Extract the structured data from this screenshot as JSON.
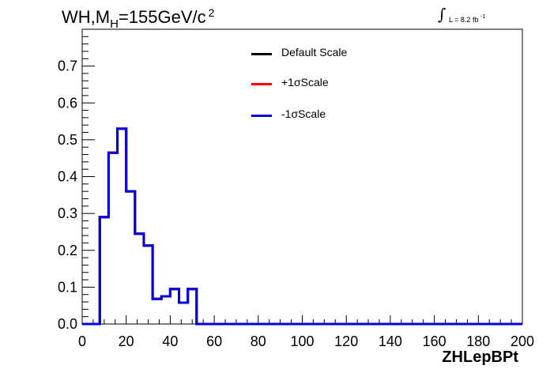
{
  "chart_data": {
    "type": "line",
    "title": {
      "main": "WH,M",
      "sub": "H",
      "rest": "=155GeV/c",
      "sup": "2"
    },
    "luminosity": {
      "integral": "∫",
      "text": "L = 8.2 fb",
      "sup": "-1"
    },
    "xlabel": "ZHLepBPt",
    "ylabel": "",
    "xlim": [
      0,
      200
    ],
    "ylim": [
      0,
      0.8
    ],
    "x_ticks": [
      0,
      20,
      40,
      60,
      80,
      100,
      120,
      140,
      160,
      180,
      200
    ],
    "y_ticks": [
      0.0,
      0.1,
      0.2,
      0.3,
      0.4,
      0.5,
      0.6,
      0.7
    ],
    "y_tick_labels": [
      "0.0",
      "0.1",
      "0.2",
      "0.3",
      "0.4",
      "0.5",
      "0.6",
      "0.7"
    ],
    "bin_edges": [
      0,
      4,
      8,
      12,
      16,
      20,
      24,
      28,
      32,
      36,
      40,
      44,
      48,
      52,
      56,
      60,
      64,
      68,
      72,
      76,
      80,
      84,
      88,
      92,
      96,
      100,
      104,
      108,
      112,
      116,
      120,
      124,
      128,
      132,
      136,
      140,
      144,
      148,
      152,
      156,
      160,
      164,
      168,
      172,
      176,
      180,
      184,
      188,
      192,
      196,
      200
    ],
    "series": [
      {
        "name": "Default Scale",
        "color": "#000000",
        "values": [
          0,
          0,
          0.29,
          0.465,
          0.53,
          0.36,
          0.245,
          0.213,
          0.068,
          0.075,
          0.095,
          0.058,
          0.095,
          0,
          0,
          0,
          0,
          0,
          0,
          0,
          0,
          0,
          0,
          0,
          0,
          0,
          0,
          0,
          0,
          0,
          0,
          0,
          0,
          0,
          0,
          0,
          0,
          0,
          0,
          0,
          0,
          0,
          0,
          0,
          0,
          0,
          0,
          0,
          0,
          0
        ]
      },
      {
        "name": "+1σScale",
        "color": "#ff0000",
        "values": [
          0,
          0,
          0.29,
          0.465,
          0.53,
          0.36,
          0.245,
          0.213,
          0.068,
          0.075,
          0.095,
          0.058,
          0.095,
          0,
          0,
          0,
          0,
          0,
          0,
          0,
          0,
          0,
          0,
          0,
          0,
          0,
          0,
          0,
          0,
          0,
          0,
          0,
          0,
          0,
          0,
          0,
          0,
          0,
          0,
          0,
          0,
          0,
          0,
          0,
          0,
          0,
          0,
          0,
          0,
          0
        ]
      },
      {
        "name": "-1σScale",
        "color": "#0000dd",
        "values": [
          0,
          0,
          0.29,
          0.465,
          0.53,
          0.36,
          0.245,
          0.213,
          0.068,
          0.075,
          0.095,
          0.058,
          0.095,
          0,
          0,
          0,
          0,
          0,
          0,
          0,
          0,
          0,
          0,
          0,
          0,
          0,
          0,
          0,
          0,
          0,
          0,
          0,
          0,
          0,
          0,
          0,
          0,
          0,
          0,
          0,
          0,
          0,
          0,
          0,
          0,
          0,
          0,
          0,
          0,
          0
        ]
      }
    ],
    "legend": [
      "Default Scale",
      "+1σScale",
      "-1σScale"
    ],
    "legend_placement": "top-center",
    "grid": false
  }
}
